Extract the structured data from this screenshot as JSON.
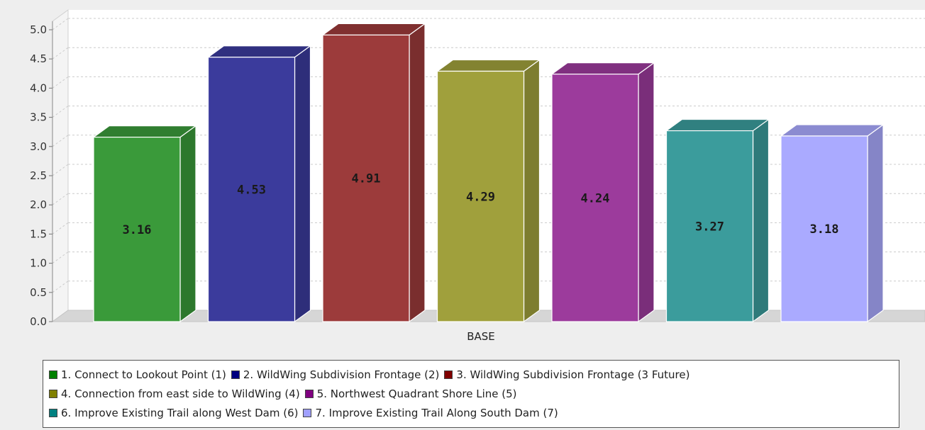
{
  "chart_data": {
    "type": "bar",
    "title": "",
    "xlabel": "",
    "ylabel": "",
    "categories": [
      "BASE"
    ],
    "ylim": [
      0,
      5.0
    ],
    "yticks": [
      "0.0",
      "0.5",
      "1.0",
      "1.5",
      "2.0",
      "2.5",
      "3.0",
      "3.5",
      "4.0",
      "4.5",
      "5.0"
    ],
    "grid": true,
    "legend_placement": "bottom",
    "series": [
      {
        "name": "1. Connect to Lookout Point (1)",
        "values": [
          3.16
        ],
        "label": "3.16",
        "color": "#3a9a3a"
      },
      {
        "name": "2. WildWing Subdivision Frontage (2)",
        "values": [
          4.53
        ],
        "label": "4.53",
        "color": "#3b3b9c"
      },
      {
        "name": "3. WildWing Subdivision Frontage (3 Future)",
        "values": [
          4.91
        ],
        "label": "4.91",
        "color": "#9c3b3b"
      },
      {
        "name": "4. Connection from east side to WildWing (4)",
        "values": [
          4.29
        ],
        "label": "4.29",
        "color": "#a0a03c"
      },
      {
        "name": "5. Northwest Quadrant Shore Line (5)",
        "values": [
          4.24
        ],
        "label": "4.24",
        "color": "#9c3b9c"
      },
      {
        "name": "6. Improve Existing Trail along West Dam (6)",
        "values": [
          3.27
        ],
        "label": "3.27",
        "color": "#3b9c9c"
      },
      {
        "name": "7. Improve Existing Trail Along South Dam (7)",
        "values": [
          3.18
        ],
        "label": "3.18",
        "color": "#aaaaff"
      }
    ],
    "legend_swatch_colors": [
      "#008000",
      "#000080",
      "#800000",
      "#808000",
      "#800080",
      "#008080",
      "#a0a0ff"
    ]
  }
}
